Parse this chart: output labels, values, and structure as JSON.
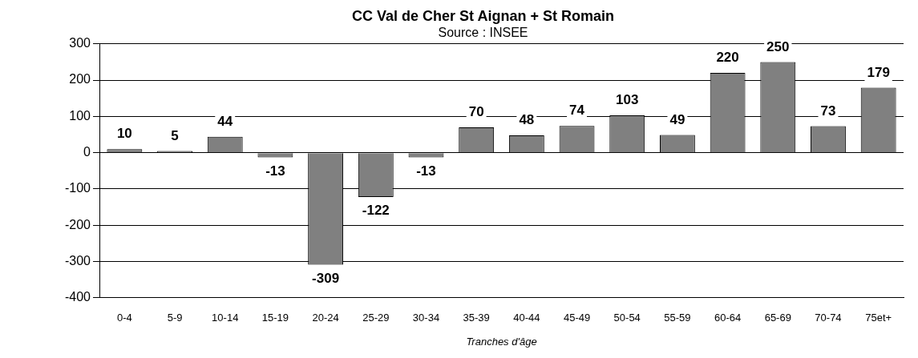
{
  "chart_data": {
    "type": "bar",
    "title": "CC Val de Cher St Aignan + St Romain",
    "subtitle": "Source : INSEE",
    "xlabel": "Tranches d'âge",
    "categories": [
      "0-4",
      "5-9",
      "10-14",
      "15-19",
      "20-24",
      "25-29",
      "30-34",
      "35-39",
      "40-44",
      "45-49",
      "50-54",
      "55-59",
      "60-64",
      "65-69",
      "70-74",
      "75et+"
    ],
    "values": [
      10,
      5,
      44,
      -13,
      -309,
      -122,
      -13,
      70,
      48,
      74,
      103,
      49,
      220,
      250,
      73,
      179
    ],
    "color": "#808080",
    "ylim": [
      -400,
      300
    ],
    "yticks": [
      -400,
      -300,
      -200,
      -100,
      0,
      100,
      200,
      300
    ],
    "grid": "y",
    "legend": false,
    "data_labels": true
  }
}
